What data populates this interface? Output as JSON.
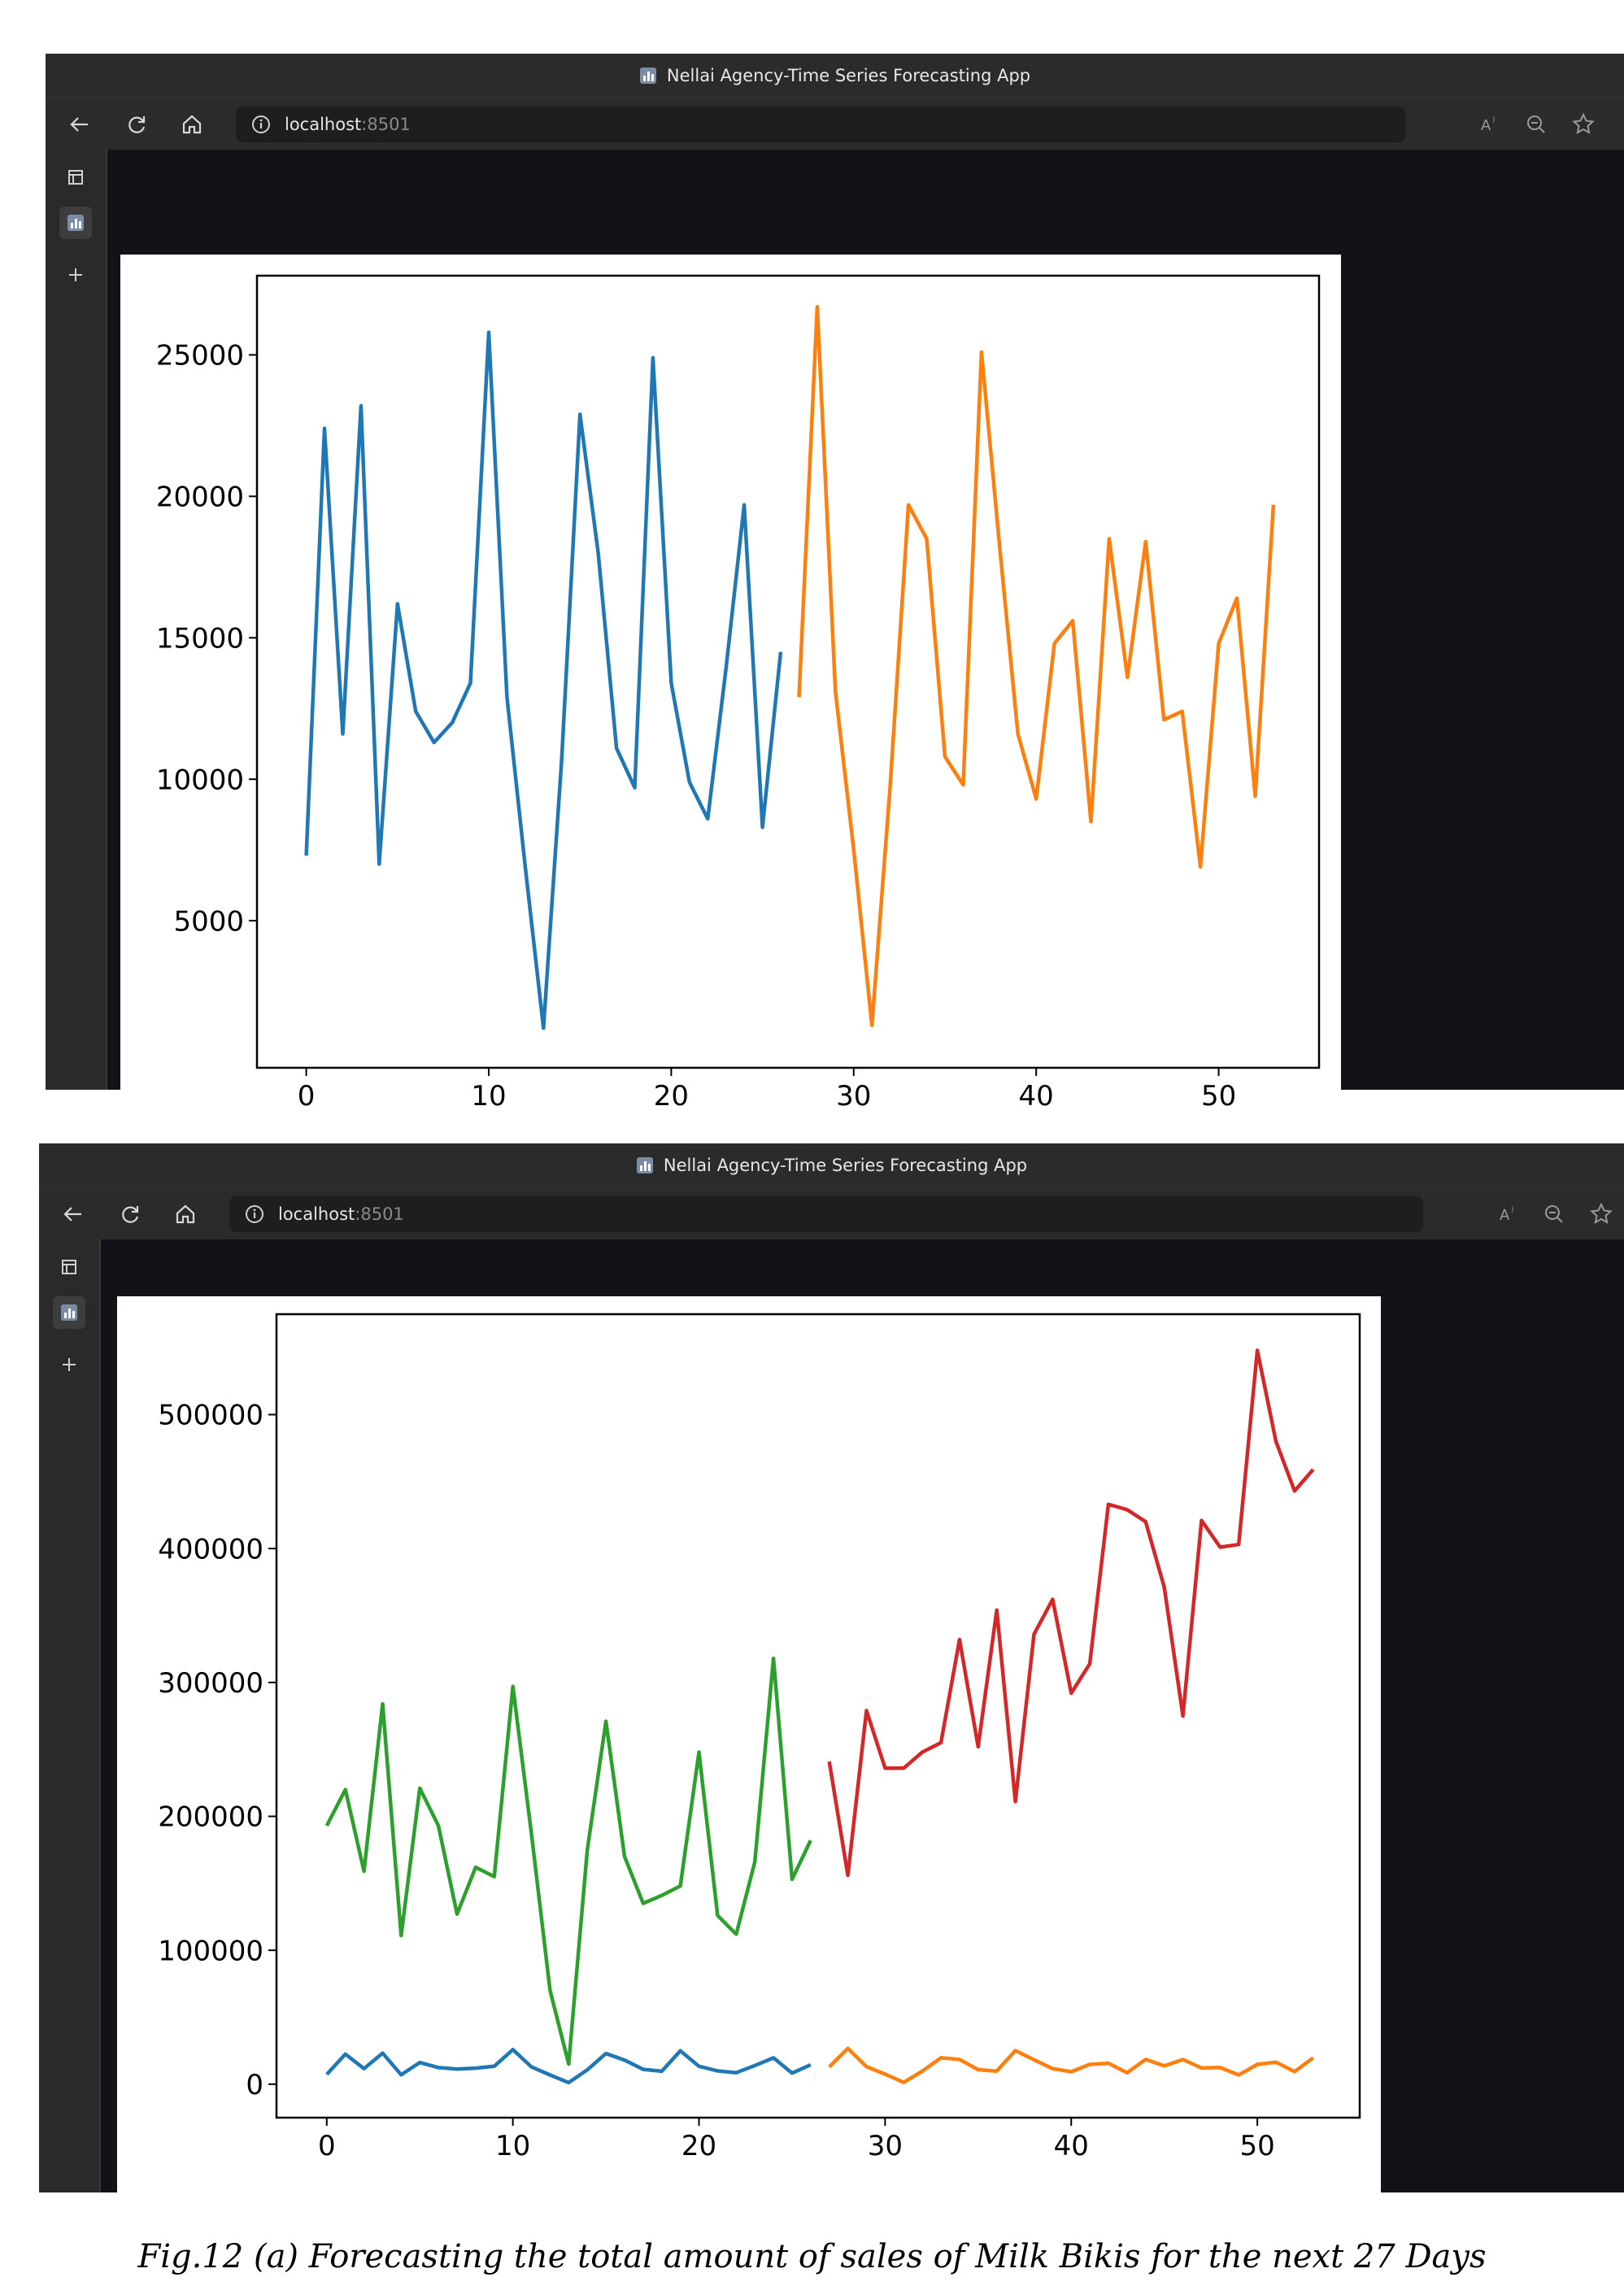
{
  "windows": [
    {
      "title": "Nellai Agency-Time Series Forecasting App",
      "url_host": "localhost",
      "url_port": ":8501"
    },
    {
      "title": "Nellai Agency-Time Series Forecasting App",
      "url_host": "localhost",
      "url_port": ":8501"
    }
  ],
  "caption": "Fig.12 (a) Forecasting the total amount of sales of Milk Bikis for the next 27 Days",
  "chart_data": [
    {
      "type": "line",
      "xlim": [
        -2.7,
        55.5
      ],
      "ylim": [
        -200,
        27800
      ],
      "xticks": [
        0,
        10,
        20,
        30,
        40,
        50
      ],
      "yticks": [
        5000,
        10000,
        15000,
        20000,
        25000
      ],
      "grid": false,
      "series": [
        {
          "color": "#1f77b4",
          "x": [
            0,
            1,
            2,
            3,
            4,
            5,
            6,
            7,
            8,
            9,
            10,
            11,
            12,
            13,
            14,
            15,
            16,
            17,
            18,
            19,
            20,
            21,
            22,
            23,
            24,
            25,
            26
          ],
          "y": [
            7300,
            22400,
            11600,
            23200,
            7000,
            16200,
            12400,
            11300,
            12000,
            13400,
            25800,
            12900,
            6900,
            1200,
            10700,
            22900,
            18000,
            11100,
            9700,
            24900,
            13400,
            9900,
            8600,
            13900,
            19700,
            8300,
            14500
          ]
        },
        {
          "color": "#ff7f0e",
          "x": [
            27,
            28,
            29,
            30,
            31,
            32,
            33,
            34,
            35,
            36,
            37,
            38,
            39,
            40,
            41,
            42,
            43,
            44,
            45,
            46,
            47,
            48,
            49,
            50,
            51,
            52,
            53
          ],
          "y": [
            12900,
            26700,
            13100,
            7500,
            1300,
            9800,
            19700,
            18500,
            10800,
            9800,
            25100,
            18200,
            11600,
            9300,
            14800,
            15600,
            8500,
            18500,
            13600,
            18400,
            12100,
            12400,
            6900,
            14800,
            16400,
            9400,
            19700
          ]
        }
      ]
    },
    {
      "type": "line",
      "xlim": [
        -2.7,
        55.5
      ],
      "ylim": [
        -25000,
        575000
      ],
      "xticks": [
        0,
        10,
        20,
        30,
        40,
        50
      ],
      "yticks": [
        0,
        100000,
        200000,
        300000,
        400000,
        500000
      ],
      "grid": false,
      "series": [
        {
          "color": "#2ca02c",
          "x": [
            0,
            1,
            2,
            3,
            4,
            5,
            6,
            7,
            8,
            9,
            10,
            11,
            12,
            13,
            14,
            15,
            16,
            17,
            18,
            19,
            20,
            21,
            22,
            23,
            24,
            25,
            26
          ],
          "y": [
            193000,
            220000,
            159000,
            284000,
            111000,
            221000,
            193000,
            127000,
            162000,
            155000,
            297000,
            187000,
            70000,
            15000,
            175000,
            271000,
            170000,
            135000,
            141000,
            148000,
            248000,
            126000,
            112000,
            166000,
            318000,
            153000,
            182000
          ]
        },
        {
          "color": "#d62728",
          "x": [
            27,
            28,
            29,
            30,
            31,
            32,
            33,
            34,
            35,
            36,
            37,
            38,
            39,
            40,
            41,
            42,
            43,
            44,
            45,
            46,
            47,
            48,
            49,
            50,
            51,
            52,
            53
          ],
          "y": [
            241000,
            156000,
            279000,
            236000,
            236000,
            248000,
            255000,
            332000,
            252000,
            354000,
            211000,
            336000,
            362000,
            292000,
            314000,
            433000,
            429000,
            420000,
            371000,
            275000,
            421000,
            401000,
            403000,
            548000,
            480000,
            443000,
            459000
          ]
        },
        {
          "color": "#1f77b4",
          "x": [
            0,
            1,
            2,
            3,
            4,
            5,
            6,
            7,
            8,
            9,
            10,
            11,
            12,
            13,
            14,
            15,
            16,
            17,
            18,
            19,
            20,
            21,
            22,
            23,
            24,
            25,
            26
          ],
          "y": [
            7300,
            22400,
            11600,
            23200,
            7000,
            16200,
            12400,
            11300,
            12000,
            13400,
            25800,
            12900,
            6900,
            1200,
            10700,
            22900,
            18000,
            11100,
            9700,
            24900,
            13400,
            9900,
            8600,
            13900,
            19700,
            8300,
            14500
          ]
        },
        {
          "color": "#ff7f0e",
          "x": [
            27,
            28,
            29,
            30,
            31,
            32,
            33,
            34,
            35,
            36,
            37,
            38,
            39,
            40,
            41,
            42,
            43,
            44,
            45,
            46,
            47,
            48,
            49,
            50,
            51,
            52,
            53
          ],
          "y": [
            12900,
            26700,
            13100,
            7500,
            1300,
            9800,
            19700,
            18500,
            10800,
            9800,
            25100,
            18200,
            11600,
            9300,
            14800,
            15600,
            8500,
            18500,
            13600,
            18400,
            12100,
            12400,
            6900,
            14800,
            16400,
            9400,
            19700
          ]
        }
      ]
    }
  ]
}
